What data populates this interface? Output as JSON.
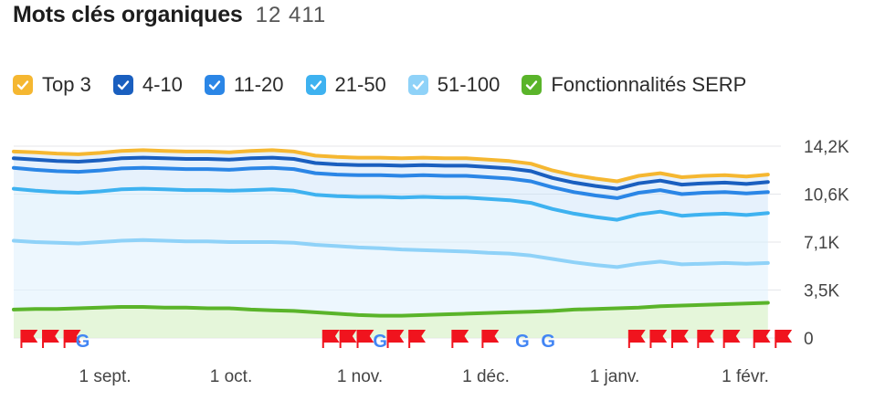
{
  "header": {
    "title": "Mots clés organiques",
    "count": "12 411"
  },
  "legend": [
    {
      "label": "Top 3",
      "color": "#f5b731"
    },
    {
      "label": "4-10",
      "color": "#1a5fbf"
    },
    {
      "label": "11-20",
      "color": "#2b86e6"
    },
    {
      "label": "21-50",
      "color": "#3eb2f0"
    },
    {
      "label": "51-100",
      "color": "#8fd2f8"
    },
    {
      "label": "Fonctionnalités SERP",
      "color": "#5ab42a"
    }
  ],
  "chart_data": {
    "type": "area",
    "xlabels": [
      "1 sept.",
      "1 oct.",
      "1 nov.",
      "1 déc.",
      "1 janv.",
      "1 févr."
    ],
    "ytick_labels": [
      "14,2K",
      "10,6K",
      "7,1K",
      "3,5K",
      "0"
    ],
    "ylim": [
      0,
      14200
    ],
    "grid": true,
    "x_days": [
      0,
      5,
      10,
      15,
      20,
      25,
      30,
      35,
      40,
      45,
      50,
      55,
      60,
      65,
      70,
      75,
      80,
      85,
      90,
      95,
      100,
      105,
      110,
      115,
      120,
      125,
      130,
      135,
      140,
      145,
      150,
      155,
      160,
      165,
      170,
      175
    ],
    "series": [
      {
        "name": "Top 3",
        "color": "#f5b731",
        "values": [
          13800,
          13750,
          13650,
          13600,
          13700,
          13850,
          13900,
          13850,
          13800,
          13800,
          13750,
          13850,
          13900,
          13800,
          13500,
          13400,
          13350,
          13350,
          13300,
          13350,
          13300,
          13300,
          13200,
          13100,
          12900,
          12400,
          12050,
          11800,
          11600,
          12000,
          12200,
          11900,
          12000,
          12050,
          11950,
          12100
        ]
      },
      {
        "name": "4-10",
        "color": "#1a5fbf",
        "values": [
          13300,
          13200,
          13100,
          13050,
          13150,
          13300,
          13350,
          13300,
          13250,
          13250,
          13200,
          13300,
          13350,
          13250,
          12950,
          12850,
          12800,
          12800,
          12750,
          12800,
          12750,
          12750,
          12650,
          12550,
          12350,
          11850,
          11500,
          11250,
          11050,
          11450,
          11650,
          11350,
          11450,
          11500,
          11400,
          11550
        ]
      },
      {
        "name": "11-20",
        "color": "#2b86e6",
        "values": [
          12600,
          12450,
          12350,
          12300,
          12400,
          12550,
          12600,
          12550,
          12500,
          12500,
          12450,
          12550,
          12600,
          12500,
          12200,
          12100,
          12050,
          12050,
          12000,
          12050,
          12000,
          12000,
          11900,
          11800,
          11600,
          11150,
          10800,
          10550,
          10350,
          10750,
          10950,
          10650,
          10750,
          10800,
          10700,
          10800
        ]
      },
      {
        "name": "21-50",
        "color": "#3eb2f0",
        "values": [
          11050,
          10900,
          10800,
          10750,
          10850,
          11000,
          11050,
          11000,
          10950,
          10950,
          10900,
          10950,
          11000,
          10900,
          10600,
          10500,
          10450,
          10450,
          10400,
          10450,
          10400,
          10400,
          10300,
          10200,
          10000,
          9550,
          9200,
          8950,
          8750,
          9150,
          9350,
          9050,
          9150,
          9200,
          9100,
          9250
        ]
      },
      {
        "name": "51-100",
        "color": "#8fd2f8",
        "values": [
          7200,
          7100,
          7050,
          7000,
          7100,
          7200,
          7250,
          7200,
          7150,
          7150,
          7100,
          7100,
          7100,
          7050,
          6900,
          6800,
          6700,
          6650,
          6550,
          6500,
          6450,
          6400,
          6300,
          6250,
          6100,
          5850,
          5600,
          5400,
          5250,
          5500,
          5650,
          5450,
          5500,
          5550,
          5500,
          5550
        ]
      },
      {
        "name": "Fonctionnalités SERP",
        "color": "#5ab42a",
        "values": [
          2100,
          2150,
          2150,
          2200,
          2250,
          2300,
          2300,
          2250,
          2250,
          2200,
          2200,
          2100,
          2050,
          2000,
          1900,
          1800,
          1700,
          1650,
          1650,
          1700,
          1750,
          1800,
          1850,
          1900,
          1950,
          2000,
          2100,
          2150,
          2200,
          2250,
          2350,
          2400,
          2450,
          2500,
          2550,
          2600
        ]
      }
    ]
  },
  "markers": {
    "flag_color": "#f0141e",
    "items": [
      {
        "type": "flag",
        "day": 2
      },
      {
        "type": "flag",
        "day": 7
      },
      {
        "type": "flag",
        "day": 12
      },
      {
        "type": "google",
        "day": 16
      },
      {
        "type": "flag",
        "day": 72
      },
      {
        "type": "flag",
        "day": 76
      },
      {
        "type": "flag",
        "day": 80
      },
      {
        "type": "google",
        "day": 85
      },
      {
        "type": "flag",
        "day": 87
      },
      {
        "type": "flag",
        "day": 92
      },
      {
        "type": "flag",
        "day": 102
      },
      {
        "type": "flag",
        "day": 109
      },
      {
        "type": "google",
        "day": 118
      },
      {
        "type": "google",
        "day": 124
      },
      {
        "type": "flag",
        "day": 143
      },
      {
        "type": "flag",
        "day": 148
      },
      {
        "type": "flag",
        "day": 153
      },
      {
        "type": "flag",
        "day": 159
      },
      {
        "type": "flag",
        "day": 165
      },
      {
        "type": "flag",
        "day": 172
      },
      {
        "type": "flag",
        "day": 177
      }
    ]
  }
}
